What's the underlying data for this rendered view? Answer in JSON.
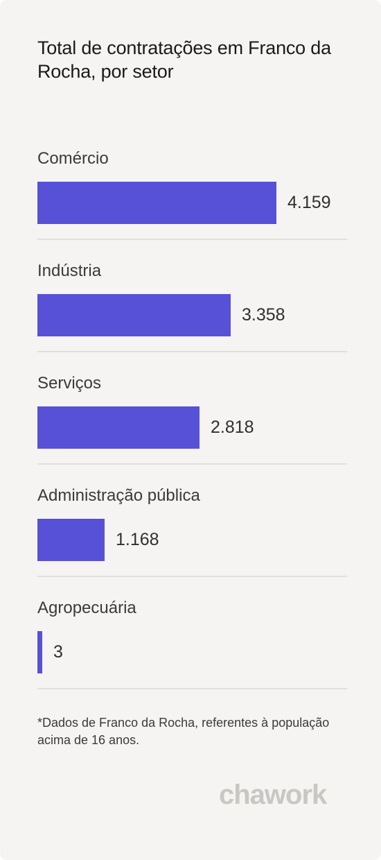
{
  "header": {
    "title": "Total de contratações em Franco da Rocha, por setor"
  },
  "colors": {
    "bar": "#5651d6",
    "background": "#f5f4f2"
  },
  "chart_data": {
    "type": "bar",
    "orientation": "horizontal",
    "title": "Total de contratações em Franco da Rocha, por setor",
    "categories": [
      "Comércio",
      "Indústria",
      "Serviços",
      "Administração pública",
      "Agropecuária"
    ],
    "values": [
      4159,
      3358,
      2818,
      1168,
      3
    ],
    "value_labels": [
      "4.159",
      "3.358",
      "2.818",
      "1.168",
      "3"
    ],
    "xlim": [
      0,
      4159
    ]
  },
  "footer": {
    "note": "*Dados de Franco da Rocha, referentes à população acima de 16 anos.",
    "logo_text": "chawork"
  }
}
